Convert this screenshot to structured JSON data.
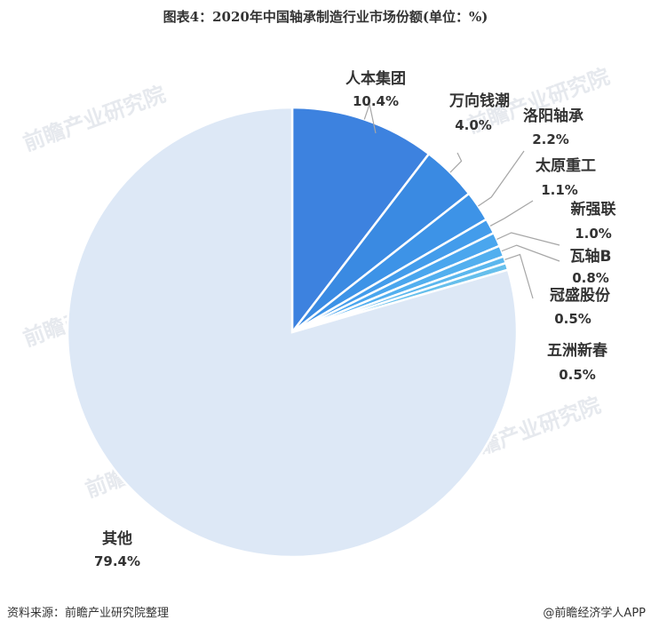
{
  "title": "图表4：2020年中国轴承制造行业市场份额(单位：%)",
  "footer": {
    "source": "资料来源：前瞻产业研究院整理",
    "brand": "@前瞻经济学人APP"
  },
  "watermark": "前瞻产业研究院",
  "chart_data": {
    "type": "pie",
    "title": "图表4：2020年中国轴承制造行业市场份额(单位：%)",
    "unit": "%",
    "slices": [
      {
        "name": "人本集团",
        "value": 10.4,
        "label": "10.4%",
        "color": "#3d82df"
      },
      {
        "name": "万向钱潮",
        "value": 4.0,
        "label": "4.0%",
        "color": "#3a8ae2"
      },
      {
        "name": "洛阳轴承",
        "value": 2.2,
        "label": "2.2%",
        "color": "#3d93e7"
      },
      {
        "name": "太原重工",
        "value": 1.1,
        "label": "1.1%",
        "color": "#439ceb"
      },
      {
        "name": "新强联",
        "value": 1.0,
        "label": "1.0%",
        "color": "#4aa6ee"
      },
      {
        "name": "瓦轴B",
        "value": 0.8,
        "label": "0.8%",
        "color": "#52afef"
      },
      {
        "name": "冠盛股份",
        "value": 0.5,
        "label": "0.5%",
        "color": "#5bb7ee"
      },
      {
        "name": "五洲新春",
        "value": 0.5,
        "label": "0.5%",
        "color": "#66bfec"
      },
      {
        "name": "其他",
        "value": 79.4,
        "label": "79.4%",
        "color": "#dde8f6"
      }
    ]
  }
}
